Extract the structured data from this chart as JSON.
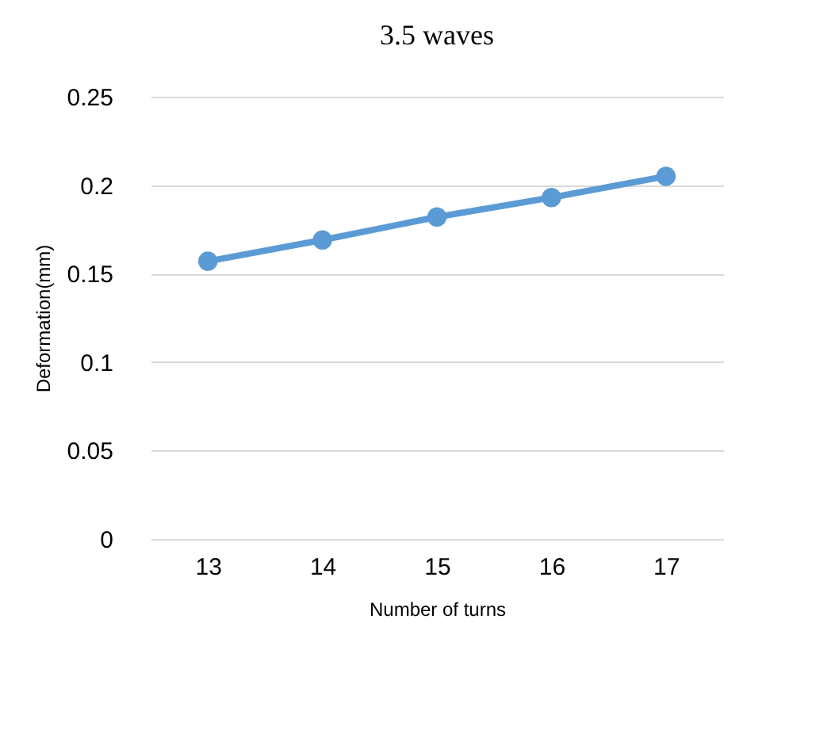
{
  "chart_data": {
    "type": "line",
    "title": "3.5 waves",
    "xlabel": "Number of turns",
    "ylabel": "Deformation(mm)",
    "categories": [
      "13",
      "14",
      "15",
      "16",
      "17"
    ],
    "series": [
      {
        "color": "#5b9bd5",
        "values": [
          0.157,
          0.169,
          0.182,
          0.193,
          0.205
        ]
      }
    ],
    "ylim": [
      0,
      0.25
    ],
    "yticks": [
      0,
      0.05,
      {
        "value": 0.1,
        "label": "0.1"
      },
      0.15,
      {
        "value": 0.2,
        "label": "0.2"
      },
      0.25
    ],
    "grid": "y",
    "marker": "circle",
    "line_style": "solid"
  }
}
